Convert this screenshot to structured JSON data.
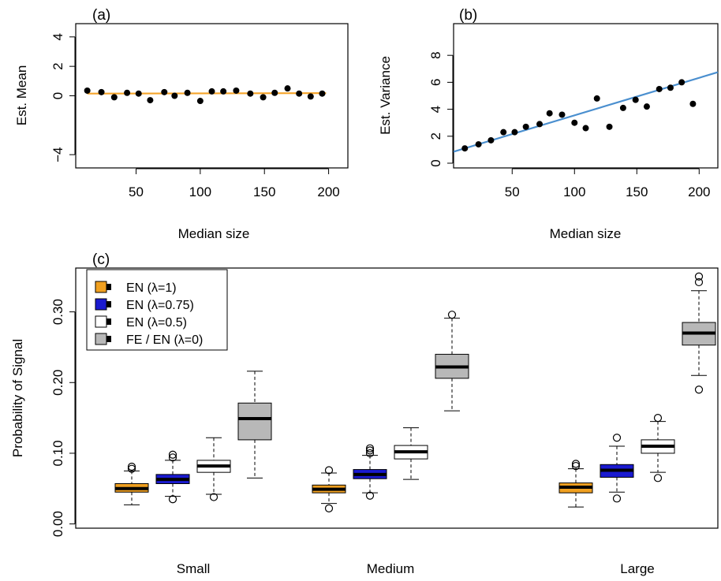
{
  "chart_data": [
    {
      "panel": "(a)",
      "type": "scatter",
      "xlabel": "Median size",
      "ylabel": "Est. Mean",
      "xlim": [
        3,
        215
      ],
      "ylim": [
        -4.9,
        4.9
      ],
      "xticks": [
        50,
        100,
        150,
        200
      ],
      "yticks": [
        -4,
        0,
        2,
        4
      ],
      "points": {
        "x": [
          12,
          23,
          33,
          43,
          52,
          61,
          72,
          80,
          90,
          100,
          109,
          118,
          128,
          139,
          149,
          158,
          168,
          177,
          186,
          195
        ],
        "y": [
          0.35,
          0.25,
          -0.1,
          0.2,
          0.15,
          -0.3,
          0.25,
          0.0,
          0.2,
          -0.35,
          0.3,
          0.3,
          0.35,
          0.15,
          -0.1,
          0.2,
          0.5,
          0.15,
          -0.05,
          0.15
        ]
      },
      "fit_line": {
        "x": [
          12,
          198
        ],
        "y": [
          0.15,
          0.18
        ],
        "color": "#f5a42a"
      }
    },
    {
      "panel": "(b)",
      "type": "scatter",
      "xlabel": "Median size",
      "ylabel": "Est. Variance",
      "xlim": [
        3,
        215
      ],
      "ylim": [
        -0.35,
        10.35
      ],
      "xticks": [
        50,
        100,
        150,
        200
      ],
      "yticks": [
        0,
        2,
        4,
        6,
        8
      ],
      "points": {
        "x": [
          12,
          23,
          33,
          43,
          52,
          61,
          72,
          80,
          90,
          100,
          109,
          118,
          128,
          139,
          149,
          158,
          168,
          177,
          186,
          195
        ],
        "y": [
          1.1,
          1.4,
          1.7,
          2.3,
          2.3,
          2.7,
          2.9,
          3.7,
          3.6,
          3.0,
          2.6,
          4.8,
          2.7,
          4.1,
          4.7,
          4.2,
          5.5,
          5.6,
          6.0,
          4.4
        ]
      },
      "fit_line": {
        "x": [
          3,
          215
        ],
        "y": [
          0.85,
          6.75
        ],
        "color": "#4a8fcf"
      }
    },
    {
      "panel": "(c)",
      "type": "box",
      "ylabel": "Probability of Signal",
      "ylim": [
        -0.006,
        0.362
      ],
      "yticks": [
        "0.00",
        "0.10",
        "0.20",
        "0.30"
      ],
      "yticks_values": [
        0.0,
        0.1,
        0.2,
        0.3
      ],
      "categories": [
        "Small",
        "Medium",
        "Large"
      ],
      "legend": [
        {
          "label": "EN (λ=1)",
          "color": "#f0a020"
        },
        {
          "label": "EN (λ=0.75)",
          "color": "#1a1ad0"
        },
        {
          "label": "EN (λ=0.5)",
          "color": "#ffffff"
        },
        {
          "label": "FE / EN (λ=0)",
          "color": "#b8b8b8"
        }
      ],
      "boxes": [
        {
          "group": "Small",
          "series": "EN (λ=1)",
          "lw": 0.027,
          "q1": 0.045,
          "median": 0.05,
          "q3": 0.057,
          "uw": 0.075,
          "outliers": [
            0.078,
            0.081
          ]
        },
        {
          "group": "Small",
          "series": "EN (λ=0.75)",
          "lw": 0.039,
          "q1": 0.057,
          "median": 0.063,
          "q3": 0.07,
          "uw": 0.09,
          "outliers": [
            0.035,
            0.094,
            0.098
          ]
        },
        {
          "group": "Small",
          "series": "EN (λ=0.5)",
          "lw": 0.042,
          "q1": 0.073,
          "median": 0.082,
          "q3": 0.09,
          "uw": 0.122,
          "outliers": [
            0.038
          ]
        },
        {
          "group": "Small",
          "series": "FE / EN (λ=0)",
          "lw": 0.065,
          "q1": 0.119,
          "median": 0.149,
          "q3": 0.171,
          "uw": 0.216,
          "outliers": []
        },
        {
          "group": "Medium",
          "series": "EN (λ=1)",
          "lw": 0.029,
          "q1": 0.044,
          "median": 0.049,
          "q3": 0.055,
          "uw": 0.072,
          "outliers": [
            0.022,
            0.076
          ]
        },
        {
          "group": "Medium",
          "series": "EN (λ=0.75)",
          "lw": 0.044,
          "q1": 0.064,
          "median": 0.07,
          "q3": 0.077,
          "uw": 0.097,
          "outliers": [
            0.04,
            0.1,
            0.104,
            0.107
          ]
        },
        {
          "group": "Medium",
          "series": "EN (λ=0.5)",
          "lw": 0.063,
          "q1": 0.092,
          "median": 0.102,
          "q3": 0.111,
          "uw": 0.136,
          "outliers": []
        },
        {
          "group": "Medium",
          "series": "FE / EN (λ=0)",
          "lw": 0.16,
          "q1": 0.206,
          "median": 0.222,
          "q3": 0.24,
          "uw": 0.291,
          "outliers": [
            0.296
          ]
        },
        {
          "group": "Large",
          "series": "EN (λ=1)",
          "lw": 0.024,
          "q1": 0.044,
          "median": 0.052,
          "q3": 0.058,
          "uw": 0.078,
          "outliers": [
            0.082,
            0.085
          ]
        },
        {
          "group": "Large",
          "series": "EN (λ=0.75)",
          "lw": 0.045,
          "q1": 0.066,
          "median": 0.076,
          "q3": 0.084,
          "uw": 0.11,
          "outliers": [
            0.036,
            0.122
          ]
        },
        {
          "group": "Large",
          "series": "EN (λ=0.5)",
          "lw": 0.073,
          "q1": 0.1,
          "median": 0.11,
          "q3": 0.119,
          "uw": 0.145,
          "outliers": [
            0.065,
            0.15
          ]
        },
        {
          "group": "Large",
          "series": "FE / EN (λ=0)",
          "lw": 0.21,
          "q1": 0.253,
          "median": 0.27,
          "q3": 0.285,
          "uw": 0.33,
          "outliers": [
            0.19,
            0.342,
            0.35
          ]
        }
      ]
    }
  ]
}
